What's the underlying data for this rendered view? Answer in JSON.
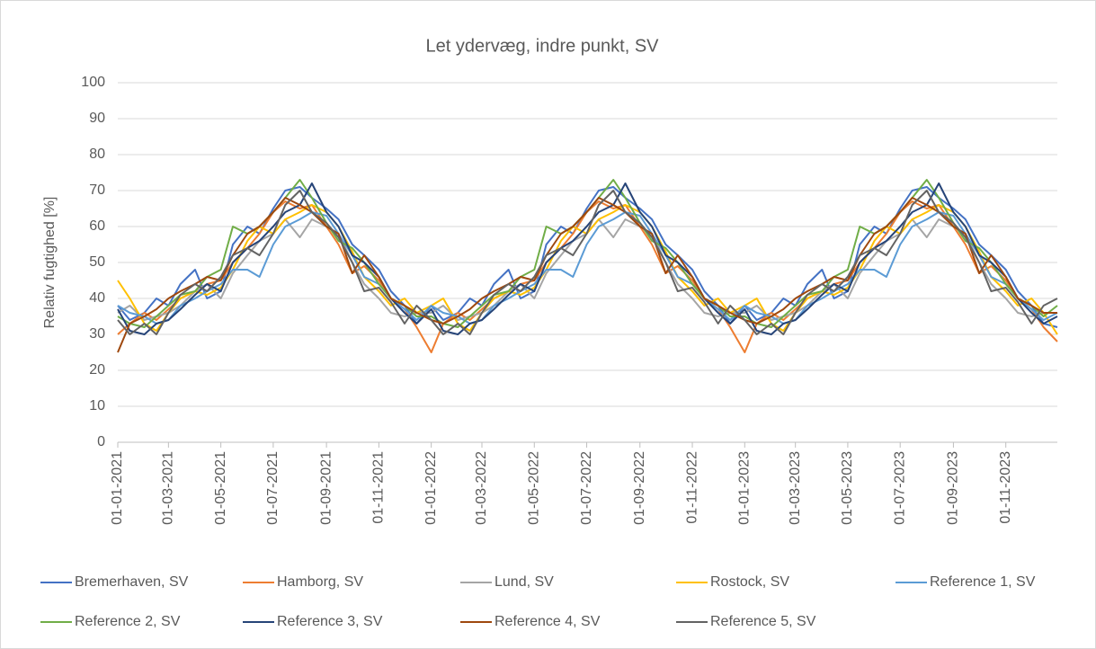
{
  "chart_data": {
    "type": "line",
    "title": "Let ydervæg, indre punkt, SV",
    "y_label": "Relativ fugtighed [%]",
    "x": [
      "01-01-2021",
      "15-01-2021",
      "01-02-2021",
      "15-02-2021",
      "01-03-2021",
      "15-03-2021",
      "01-04-2021",
      "15-04-2021",
      "01-05-2021",
      "15-05-2021",
      "01-06-2021",
      "15-06-2021",
      "01-07-2021",
      "15-07-2021",
      "01-08-2021",
      "15-08-2021",
      "01-09-2021",
      "15-09-2021",
      "01-10-2021",
      "15-10-2021",
      "01-11-2021",
      "15-11-2021",
      "01-12-2021",
      "15-12-2021",
      "01-01-2022",
      "15-01-2022",
      "01-02-2022",
      "15-02-2022",
      "01-03-2022",
      "15-03-2022",
      "01-04-2022",
      "15-04-2022",
      "01-05-2022",
      "15-05-2022",
      "01-06-2022",
      "15-06-2022",
      "01-07-2022",
      "15-07-2022",
      "01-08-2022",
      "15-08-2022",
      "01-09-2022",
      "15-09-2022",
      "01-10-2022",
      "15-10-2022",
      "01-11-2022",
      "15-11-2022",
      "01-12-2022",
      "15-12-2022",
      "01-01-2023",
      "15-01-2023",
      "01-02-2023",
      "15-02-2023",
      "01-03-2023",
      "15-03-2023",
      "01-04-2023",
      "15-04-2023",
      "01-05-2023",
      "15-05-2023",
      "01-06-2023",
      "15-06-2023",
      "01-07-2023",
      "15-07-2023",
      "01-08-2023",
      "15-08-2023",
      "01-09-2023",
      "15-09-2023",
      "01-10-2023",
      "15-10-2023",
      "01-11-2023",
      "15-11-2023",
      "01-12-2023",
      "15-12-2023",
      "31-12-2023"
    ],
    "xlim": [
      "01-01-2021",
      "31-12-2023"
    ],
    "xticks": [
      "01-01-2021",
      "01-03-2021",
      "01-05-2021",
      "01-07-2021",
      "01-09-2021",
      "01-11-2021",
      "01-01-2022",
      "01-03-2022",
      "01-05-2022",
      "01-07-2022",
      "01-09-2022",
      "01-11-2022",
      "01-01-2023",
      "01-03-2023",
      "01-05-2023",
      "01-07-2023",
      "01-09-2023",
      "01-11-2023"
    ],
    "ylim": [
      0,
      100
    ],
    "yticks": [
      0,
      10,
      20,
      30,
      40,
      50,
      60,
      70,
      80,
      90,
      100
    ],
    "grid": true,
    "series": [
      {
        "name": "Bremerhaven, SV",
        "color": "#4472c4",
        "values": [
          38,
          34,
          36,
          40,
          38,
          44,
          48,
          40,
          42,
          55,
          60,
          58,
          65,
          70,
          71,
          68,
          65,
          62,
          55,
          52,
          48,
          42,
          38,
          33,
          38,
          34,
          36,
          40,
          38,
          44,
          48,
          40,
          42,
          55,
          60,
          58,
          65,
          70,
          71,
          68,
          65,
          62,
          55,
          52,
          48,
          42,
          38,
          33,
          38,
          34,
          36,
          40,
          38,
          44,
          48,
          40,
          42,
          55,
          60,
          58,
          65,
          70,
          71,
          68,
          65,
          62,
          55,
          52,
          48,
          42,
          38,
          33,
          32
        ]
      },
      {
        "name": "Hamborg, SV",
        "color": "#ed7d31",
        "values": [
          30,
          33,
          36,
          34,
          37,
          40,
          42,
          44,
          45,
          50,
          54,
          58,
          64,
          67,
          65,
          66,
          60,
          55,
          47,
          49,
          45,
          40,
          37,
          32,
          25,
          33,
          36,
          34,
          37,
          40,
          42,
          44,
          45,
          50,
          54,
          58,
          64,
          67,
          65,
          66,
          60,
          55,
          47,
          49,
          45,
          40,
          37,
          32,
          25,
          33,
          36,
          34,
          37,
          40,
          42,
          44,
          45,
          50,
          54,
          58,
          64,
          67,
          65,
          66,
          60,
          55,
          47,
          49,
          45,
          40,
          37,
          32,
          28
        ]
      },
      {
        "name": "Lund, SV",
        "color": "#a5a5a5",
        "values": [
          36,
          38,
          34,
          35,
          36,
          38,
          42,
          44,
          40,
          47,
          52,
          56,
          58,
          62,
          57,
          62,
          60,
          58,
          50,
          44,
          40,
          36,
          35,
          36,
          36,
          38,
          34,
          35,
          36,
          38,
          42,
          44,
          40,
          47,
          52,
          56,
          58,
          62,
          57,
          62,
          60,
          58,
          50,
          44,
          40,
          36,
          35,
          36,
          36,
          38,
          34,
          35,
          36,
          38,
          42,
          44,
          40,
          47,
          52,
          56,
          58,
          62,
          57,
          62,
          60,
          58,
          50,
          44,
          40,
          36,
          35,
          36,
          36
        ]
      },
      {
        "name": "Rostock, SV",
        "color": "#ffc000",
        "values": [
          45,
          40,
          33,
          31,
          36,
          40,
          42,
          41,
          43,
          48,
          56,
          60,
          58,
          62,
          64,
          66,
          64,
          60,
          53,
          46,
          42,
          38,
          40,
          36,
          38,
          40,
          33,
          31,
          36,
          40,
          42,
          41,
          43,
          48,
          56,
          60,
          58,
          62,
          64,
          66,
          64,
          60,
          53,
          46,
          42,
          38,
          40,
          36,
          38,
          40,
          33,
          31,
          36,
          40,
          42,
          41,
          43,
          48,
          56,
          60,
          58,
          62,
          64,
          66,
          64,
          60,
          53,
          46,
          42,
          38,
          40,
          36,
          30
        ]
      },
      {
        "name": "Reference 1, SV",
        "color": "#5b9bd5",
        "values": [
          38,
          36,
          35,
          33,
          34,
          38,
          40,
          42,
          44,
          48,
          48,
          46,
          55,
          60,
          62,
          64,
          63,
          58,
          52,
          46,
          44,
          40,
          37,
          34,
          38,
          36,
          35,
          33,
          34,
          38,
          40,
          42,
          44,
          48,
          48,
          46,
          55,
          60,
          62,
          64,
          63,
          58,
          52,
          46,
          44,
          40,
          37,
          34,
          38,
          36,
          35,
          33,
          34,
          38,
          40,
          42,
          44,
          48,
          48,
          46,
          55,
          60,
          62,
          64,
          63,
          58,
          52,
          46,
          44,
          40,
          37,
          34,
          36
        ]
      },
      {
        "name": "Reference 2, SV",
        "color": "#70ad47",
        "values": [
          35,
          33,
          32,
          35,
          38,
          41,
          42,
          46,
          48,
          60,
          58,
          60,
          64,
          68,
          73,
          68,
          61,
          56,
          54,
          50,
          44,
          40,
          38,
          35,
          35,
          33,
          32,
          35,
          38,
          41,
          42,
          46,
          48,
          60,
          58,
          60,
          64,
          68,
          73,
          68,
          61,
          56,
          54,
          50,
          44,
          40,
          38,
          35,
          35,
          33,
          32,
          35,
          38,
          41,
          42,
          46,
          48,
          60,
          58,
          60,
          64,
          68,
          73,
          68,
          61,
          56,
          54,
          50,
          44,
          40,
          38,
          35,
          38
        ]
      },
      {
        "name": "Reference 3, SV",
        "color": "#264478",
        "values": [
          37,
          31,
          30,
          33,
          34,
          37,
          41,
          44,
          42,
          50,
          54,
          56,
          60,
          64,
          66,
          72,
          64,
          60,
          52,
          50,
          46,
          40,
          36,
          33,
          37,
          31,
          30,
          33,
          34,
          37,
          41,
          44,
          42,
          50,
          54,
          56,
          60,
          64,
          66,
          72,
          64,
          60,
          52,
          50,
          46,
          40,
          36,
          33,
          37,
          31,
          30,
          33,
          34,
          37,
          41,
          44,
          42,
          50,
          54,
          56,
          60,
          64,
          66,
          72,
          64,
          60,
          52,
          50,
          46,
          40,
          36,
          33,
          35
        ]
      },
      {
        "name": "Reference 4, SV",
        "color": "#9e480e",
        "values": [
          25,
          33,
          35,
          37,
          40,
          42,
          44,
          46,
          45,
          52,
          58,
          60,
          64,
          68,
          66,
          64,
          60,
          58,
          47,
          52,
          46,
          40,
          38,
          36,
          34,
          33,
          35,
          37,
          40,
          42,
          44,
          46,
          45,
          52,
          58,
          60,
          64,
          68,
          66,
          64,
          60,
          58,
          47,
          52,
          46,
          40,
          38,
          36,
          34,
          33,
          35,
          37,
          40,
          42,
          44,
          46,
          45,
          52,
          58,
          60,
          64,
          68,
          66,
          64,
          60,
          58,
          47,
          52,
          46,
          40,
          38,
          36,
          36
        ]
      },
      {
        "name": "Reference 5, SV",
        "color": "#636363",
        "values": [
          34,
          30,
          33,
          30,
          36,
          41,
          44,
          42,
          46,
          52,
          54,
          52,
          58,
          66,
          70,
          64,
          61,
          57,
          50,
          42,
          43,
          39,
          33,
          38,
          34,
          30,
          33,
          30,
          36,
          41,
          44,
          42,
          46,
          52,
          54,
          52,
          58,
          66,
          70,
          64,
          61,
          57,
          50,
          42,
          43,
          39,
          33,
          38,
          34,
          30,
          33,
          30,
          36,
          41,
          44,
          42,
          46,
          52,
          54,
          52,
          58,
          66,
          70,
          64,
          61,
          57,
          50,
          42,
          43,
          39,
          33,
          38,
          40
        ]
      }
    ]
  }
}
